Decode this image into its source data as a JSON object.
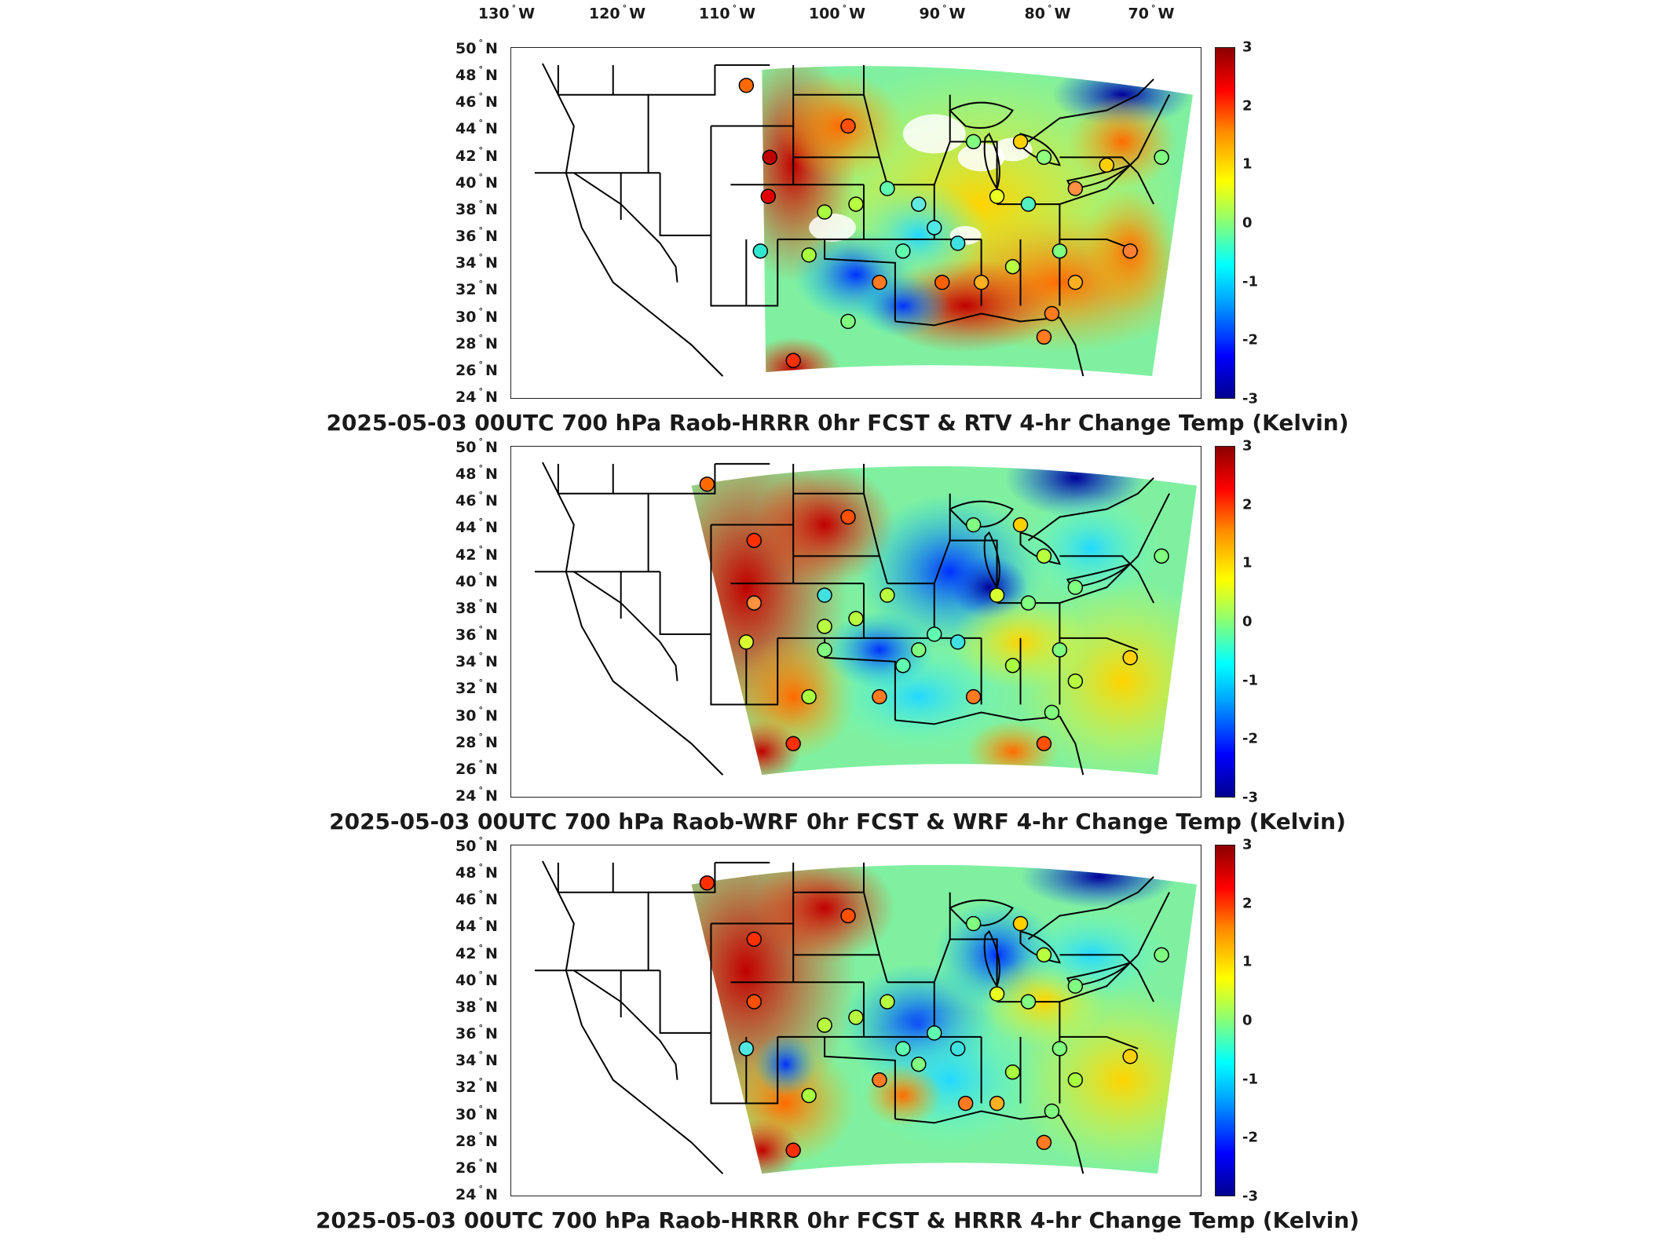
{
  "longitude_labels": [
    {
      "deg": "130",
      "hem": "W"
    },
    {
      "deg": "120",
      "hem": "W"
    },
    {
      "deg": "110",
      "hem": "W"
    },
    {
      "deg": "100",
      "hem": "W"
    },
    {
      "deg": "90",
      "hem": "W"
    },
    {
      "deg": "80",
      "hem": "W"
    },
    {
      "deg": "70",
      "hem": "W"
    }
  ],
  "latitude_labels": [
    {
      "deg": "50",
      "hem": "N"
    },
    {
      "deg": "48",
      "hem": "N"
    },
    {
      "deg": "46",
      "hem": "N"
    },
    {
      "deg": "44",
      "hem": "N"
    },
    {
      "deg": "42",
      "hem": "N"
    },
    {
      "deg": "40",
      "hem": "N"
    },
    {
      "deg": "38",
      "hem": "N"
    },
    {
      "deg": "36",
      "hem": "N"
    },
    {
      "deg": "34",
      "hem": "N"
    },
    {
      "deg": "32",
      "hem": "N"
    },
    {
      "deg": "30",
      "hem": "N"
    },
    {
      "deg": "28",
      "hem": "N"
    },
    {
      "deg": "26",
      "hem": "N"
    },
    {
      "deg": "24",
      "hem": "N"
    }
  ],
  "colorbar": {
    "ticks": [
      "3",
      "2",
      "1",
      "0",
      "-1",
      "-2",
      "-3"
    ],
    "range": [
      -3,
      3
    ],
    "colormap": "jet",
    "colors": [
      "#00008f",
      "#0000ff",
      "#00ffff",
      "#ffff00",
      "#ff0000",
      "#8b0000"
    ]
  },
  "panels": [
    {
      "title": "2025-05-03 00UTC 700 hPa Raob-HRRR 0hr FCST & RTV 4-hr Change Temp (Kelvin)"
    },
    {
      "title": "2025-05-03 00UTC 700 hPa Raob-WRF 0hr FCST & WRF 4-hr Change Temp (Kelvin)"
    },
    {
      "title": "2025-05-03 00UTC 700 hPa Raob-HRRR 0hr FCST & HRRR 4-hr Change Temp (Kelvin)"
    }
  ]
}
